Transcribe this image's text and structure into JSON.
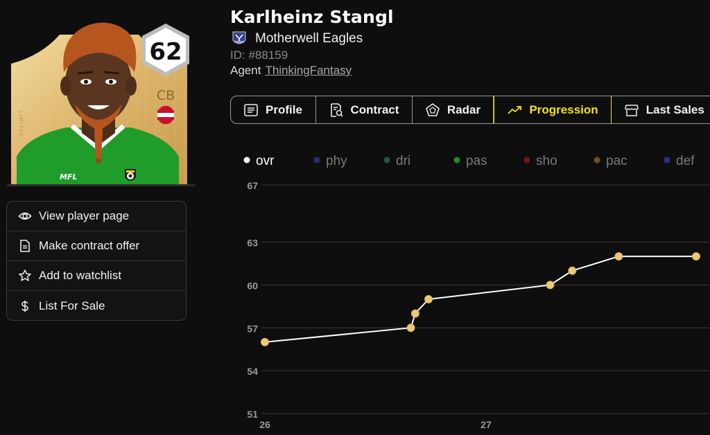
{
  "card": {
    "rating": "62",
    "position": "CB",
    "edition_label": "LIMITED",
    "brand": "MFL",
    "colors": {
      "gold": "#e3c07a",
      "shirt": "#1f9c2a",
      "hair": "#b7551f",
      "skin": "#5a3620"
    }
  },
  "actions": [
    {
      "label": "View player page",
      "icon": "eye-icon"
    },
    {
      "label": "Make contract offer",
      "icon": "document-icon"
    },
    {
      "label": "Add to watchlist",
      "icon": "star-icon"
    },
    {
      "label": "List For Sale",
      "icon": "dollar-icon"
    }
  ],
  "player": {
    "name": "Karlheinz Stangl",
    "club": "Motherwell Eagles",
    "id": "ID: #88159",
    "agent_label": "Agent",
    "agent_name": "ThinkingFantasy"
  },
  "tabs": [
    {
      "label": "Profile",
      "icon": "list-icon",
      "active": false
    },
    {
      "label": "Contract",
      "icon": "contract-search-icon",
      "active": false
    },
    {
      "label": "Radar",
      "icon": "pentagon-radar-icon",
      "active": false
    },
    {
      "label": "Progression",
      "icon": "trending-up-icon",
      "active": true
    },
    {
      "label": "Last Sales",
      "icon": "store-icon",
      "active": false
    }
  ],
  "colors": {
    "accent": "#f3e21a",
    "point": "#ecc97a",
    "line": "#ffffff",
    "grid": "#3a3a3a"
  },
  "chart_data": {
    "type": "line",
    "legend": [
      {
        "name": "ovr",
        "color": "#ffffff",
        "active": true
      },
      {
        "name": "phy",
        "color": "#2a2f6b",
        "active": false
      },
      {
        "name": "dri",
        "color": "#1f5a45",
        "active": false
      },
      {
        "name": "pas",
        "color": "#1f8a2a",
        "active": false
      },
      {
        "name": "sho",
        "color": "#7a1414",
        "active": false
      },
      {
        "name": "pac",
        "color": "#7a4b22",
        "active": false
      },
      {
        "name": "def",
        "color": "#23368a",
        "active": false
      }
    ],
    "y_ticks": [
      51,
      54,
      57,
      60,
      63,
      67
    ],
    "ylim": [
      51,
      67
    ],
    "x_ticks": [
      {
        "label": "26",
        "value": 26.0
      },
      {
        "label": "27",
        "value": 27.0
      }
    ],
    "xlim": [
      26.0,
      27.95
    ],
    "series": [
      {
        "name": "ovr",
        "points": [
          {
            "x": 26.0,
            "y": 56
          },
          {
            "x": 26.66,
            "y": 57
          },
          {
            "x": 26.68,
            "y": 58
          },
          {
            "x": 26.74,
            "y": 59
          },
          {
            "x": 27.29,
            "y": 60
          },
          {
            "x": 27.39,
            "y": 61
          },
          {
            "x": 27.6,
            "y": 62
          },
          {
            "x": 27.95,
            "y": 62
          }
        ]
      }
    ]
  }
}
